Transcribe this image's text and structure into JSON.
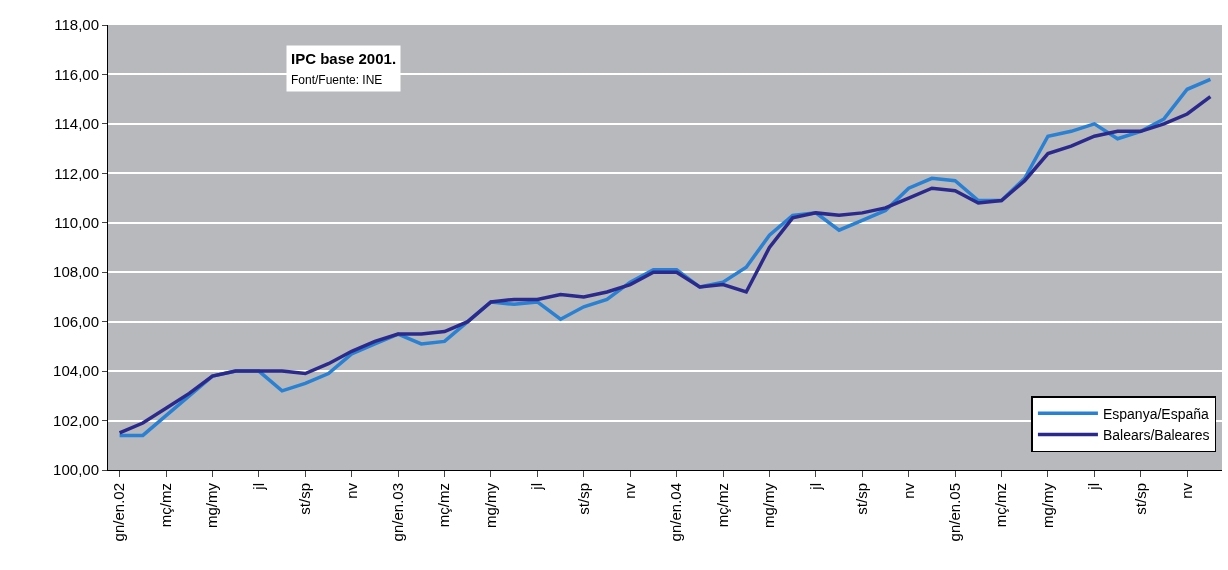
{
  "chart_data": {
    "type": "line",
    "annotations": [
      "IPC base 2001.",
      "Font/Fuente: INE"
    ],
    "categories": [
      "gn/en.02",
      null,
      "mç/mz",
      null,
      "mg/my",
      null,
      "jl",
      null,
      "st/sp",
      null,
      "nv",
      null,
      "gn/en.03",
      null,
      "mç/mz",
      null,
      "mg/my",
      null,
      "jl",
      null,
      "st/sp",
      null,
      "nv",
      null,
      "gn/en.04",
      null,
      "mç/mz",
      null,
      "mg/my",
      null,
      "jl",
      null,
      "st/sp",
      null,
      "nv",
      null,
      "gn/en.05",
      null,
      "mç/mz",
      null,
      "mg/my",
      null,
      "jl",
      null,
      "st/sp",
      null,
      "nv",
      null
    ],
    "series": [
      {
        "name": "Espanya/España",
        "color": "#2a80d2",
        "values": [
          101.4,
          101.4,
          102.2,
          103.0,
          103.8,
          104.0,
          104.0,
          103.2,
          103.5,
          103.9,
          104.7,
          105.1,
          105.5,
          105.1,
          105.2,
          106.0,
          106.8,
          106.7,
          106.8,
          106.1,
          106.6,
          106.9,
          107.6,
          108.1,
          108.1,
          107.4,
          107.6,
          108.2,
          109.5,
          110.3,
          110.4,
          109.7,
          110.1,
          110.5,
          111.4,
          111.8,
          111.7,
          110.9,
          110.9,
          111.8,
          113.5,
          113.7,
          114.0,
          113.4,
          113.7,
          114.2,
          115.4,
          115.8
        ]
      },
      {
        "name": "Balears/Baleares",
        "color": "#2b2a8c",
        "values": [
          101.5,
          101.9,
          102.5,
          103.1,
          103.8,
          104.0,
          104.0,
          104.0,
          103.9,
          104.3,
          104.8,
          105.2,
          105.5,
          105.5,
          105.6,
          106.0,
          106.8,
          106.9,
          106.9,
          107.1,
          107.0,
          107.2,
          107.5,
          108.0,
          108.0,
          107.4,
          107.5,
          107.2,
          109.0,
          110.2,
          110.4,
          110.3,
          110.4,
          110.6,
          111.0,
          111.4,
          111.3,
          110.8,
          110.9,
          111.7,
          112.8,
          113.1,
          113.5,
          113.7,
          113.7,
          114.0,
          114.4,
          115.1
        ]
      }
    ],
    "ylim": [
      100,
      118
    ],
    "yticks": [
      {
        "value": 100,
        "label": "100,00"
      },
      {
        "value": 102,
        "label": "102,00"
      },
      {
        "value": 104,
        "label": "104,00"
      },
      {
        "value": 106,
        "label": "106,00"
      },
      {
        "value": 108,
        "label": "108,00"
      },
      {
        "value": 110,
        "label": "110,00"
      },
      {
        "value": 112,
        "label": "112,00"
      },
      {
        "value": 114,
        "label": "114,00"
      },
      {
        "value": 116,
        "label": "116,00"
      },
      {
        "value": 118,
        "label": "118,00"
      }
    ],
    "grid": "y",
    "legend": "bottom right",
    "marker": "none",
    "line_style": "solid"
  }
}
